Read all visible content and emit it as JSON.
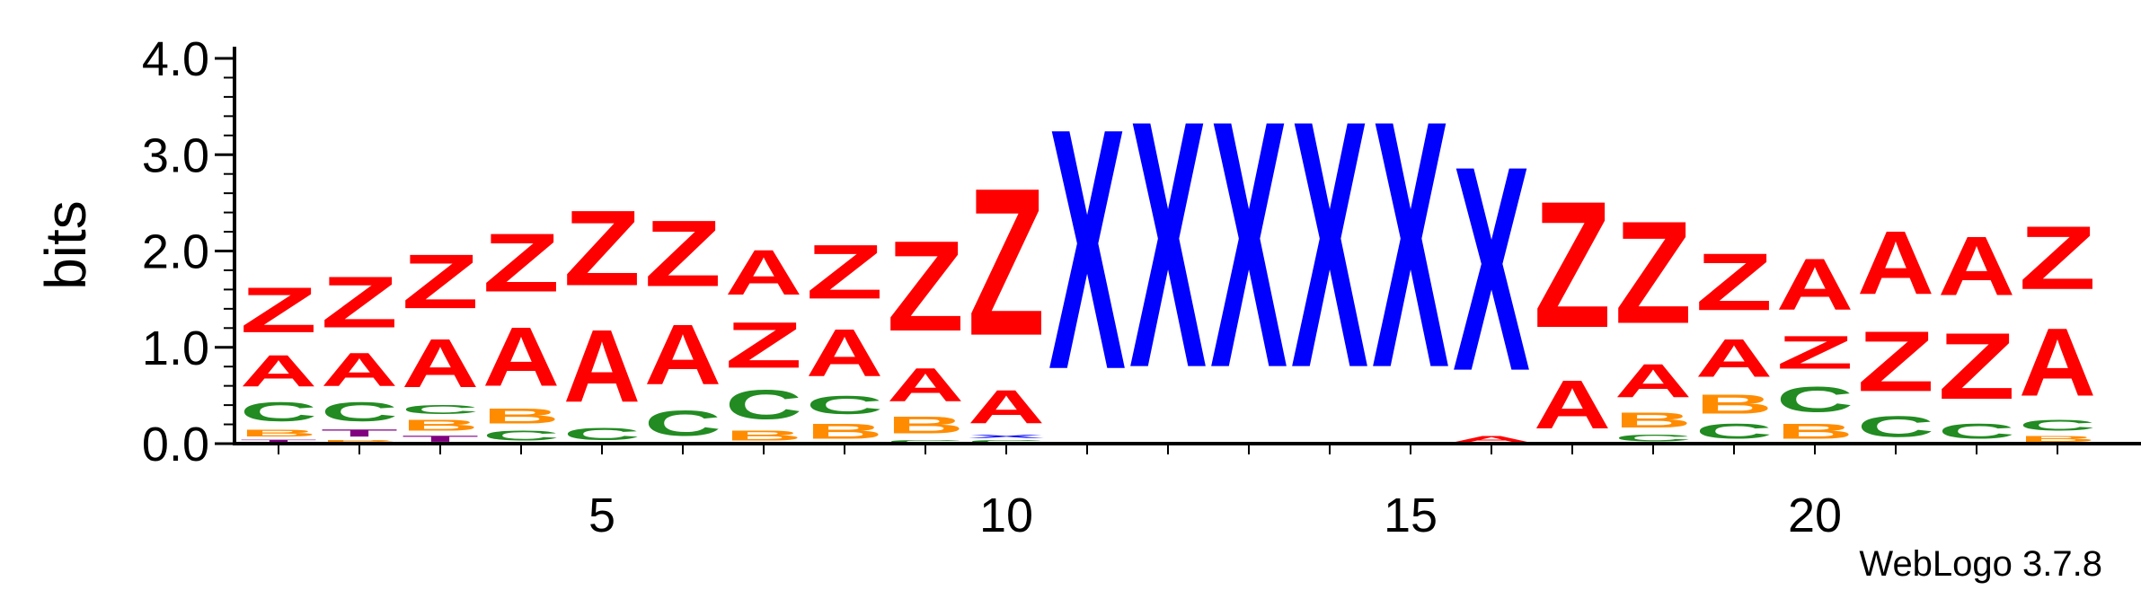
{
  "chart_data": {
    "type": "sequence-logo",
    "ylabel": "bits",
    "ylim": [
      0,
      4.0
    ],
    "yticks": [
      "0.0",
      "1.0",
      "2.0",
      "3.0",
      "4.0"
    ],
    "xticks": [
      {
        "pos": 5,
        "label": "5"
      },
      {
        "pos": 10,
        "label": "10"
      },
      {
        "pos": 15,
        "label": "15"
      },
      {
        "pos": 20,
        "label": "20"
      }
    ],
    "colors": {
      "Z": "#ff0000",
      "A": "#ff0000",
      "X": "#0000ff",
      "C": "#228b22",
      "B": "#ff8c00",
      "T": "#800080"
    },
    "columns": [
      {
        "pos": 1,
        "stack": [
          [
            "T",
            0.05
          ],
          [
            "B",
            0.12
          ],
          [
            "C",
            0.32
          ],
          [
            "A",
            0.52
          ],
          [
            "Z",
            0.75
          ]
        ]
      },
      {
        "pos": 2,
        "stack": [
          [
            "B",
            0.05
          ],
          [
            "T",
            0.12
          ],
          [
            "C",
            0.32
          ],
          [
            "A",
            0.55
          ],
          [
            "Z",
            0.85
          ]
        ]
      },
      {
        "pos": 3,
        "stack": [
          [
            "T",
            0.1
          ],
          [
            "B",
            0.18
          ],
          [
            "C",
            0.15
          ],
          [
            "A",
            0.8
          ],
          [
            "Z",
            0.9
          ]
        ]
      },
      {
        "pos": 4,
        "stack": [
          [
            "C",
            0.16
          ],
          [
            "B",
            0.25
          ],
          [
            "A",
            0.98
          ],
          [
            "Z",
            0.97
          ]
        ]
      },
      {
        "pos": 5,
        "stack": [
          [
            "C",
            0.2
          ],
          [
            "A",
            1.2
          ],
          [
            "Z",
            1.25
          ]
        ]
      },
      {
        "pos": 6,
        "stack": [
          [
            "C",
            0.42
          ],
          [
            "A",
            1.0
          ],
          [
            "Z",
            1.1
          ]
        ]
      },
      {
        "pos": 7,
        "stack": [
          [
            "B",
            0.16
          ],
          [
            "C",
            0.48
          ],
          [
            "Z",
            0.76
          ],
          [
            "A",
            0.75
          ]
        ]
      },
      {
        "pos": 8,
        "stack": [
          [
            "B",
            0.25
          ],
          [
            "C",
            0.3
          ],
          [
            "A",
            0.78
          ],
          [
            "Z",
            0.9
          ]
        ]
      },
      {
        "pos": 9,
        "stack": [
          [
            "C",
            0.05
          ],
          [
            "B",
            0.28
          ],
          [
            "A",
            0.55
          ],
          [
            "Z",
            1.5
          ]
        ]
      },
      {
        "pos": 10,
        "stack": [
          [
            "C",
            0.05
          ],
          [
            "X",
            0.05
          ],
          [
            "A",
            0.55
          ],
          [
            "Z",
            2.45
          ]
        ]
      },
      {
        "pos": 11,
        "stack": [
          [
            "X",
            4.0
          ]
        ]
      },
      {
        "pos": 12,
        "stack": [
          [
            "X",
            4.1
          ]
        ]
      },
      {
        "pos": 13,
        "stack": [
          [
            "X",
            4.1
          ]
        ]
      },
      {
        "pos": 14,
        "stack": [
          [
            "X",
            4.1
          ]
        ]
      },
      {
        "pos": 15,
        "stack": [
          [
            "X",
            4.1
          ]
        ]
      },
      {
        "pos": 16,
        "stack": [
          [
            "A",
            0.1
          ],
          [
            "X",
            3.4
          ]
        ]
      },
      {
        "pos": 17,
        "stack": [
          [
            "A",
            0.8
          ],
          [
            "Z",
            2.1
          ]
        ]
      },
      {
        "pos": 18,
        "stack": [
          [
            "C",
            0.12
          ],
          [
            "B",
            0.25
          ],
          [
            "A",
            0.55
          ],
          [
            "Z",
            1.7
          ]
        ]
      },
      {
        "pos": 19,
        "stack": [
          [
            "C",
            0.25
          ],
          [
            "B",
            0.32
          ],
          [
            "A",
            0.63
          ],
          [
            "Z",
            0.95
          ]
        ]
      },
      {
        "pos": 20,
        "stack": [
          [
            "B",
            0.25
          ],
          [
            "C",
            0.42
          ],
          [
            "Z",
            0.55
          ],
          [
            "A",
            0.85
          ]
        ]
      },
      {
        "pos": 21,
        "stack": [
          [
            "C",
            0.35
          ],
          [
            "Z",
            1.0
          ],
          [
            "A",
            1.05
          ]
        ]
      },
      {
        "pos": 22,
        "stack": [
          [
            "C",
            0.25
          ],
          [
            "Z",
            1.1
          ],
          [
            "A",
            0.98
          ]
        ]
      },
      {
        "pos": 23,
        "stack": [
          [
            "B",
            0.1
          ],
          [
            "C",
            0.18
          ],
          [
            "A",
            1.12
          ],
          [
            "Z",
            1.05
          ]
        ]
      }
    ]
  },
  "credit": "WebLogo 3.7.8"
}
